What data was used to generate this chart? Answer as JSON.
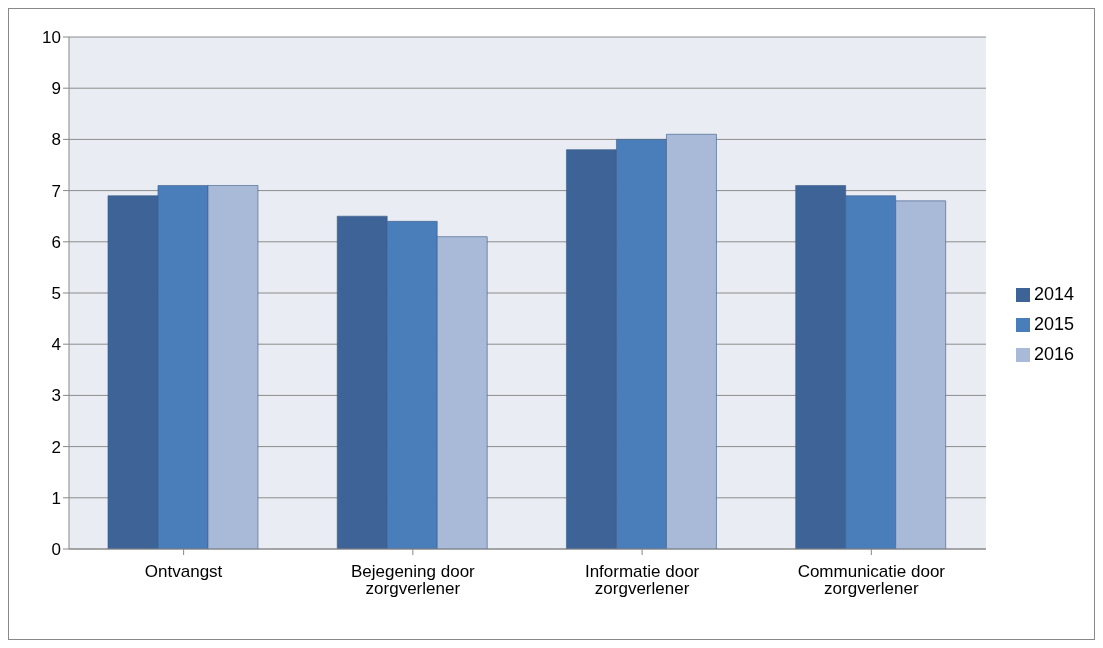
{
  "chart_data": {
    "type": "bar",
    "categories": [
      "Ontvangst",
      "Bejegening door zorgverlener",
      "Informatie door zorgverlener",
      "Communicatie door zorgverlener"
    ],
    "series": [
      {
        "name": "2014",
        "color": "#3e6497",
        "values": [
          6.9,
          6.5,
          7.8,
          7.1
        ]
      },
      {
        "name": "2015",
        "color": "#4a7ebb",
        "values": [
          7.1,
          6.4,
          8.0,
          6.9
        ]
      },
      {
        "name": "2016",
        "color": "#a9b9d8",
        "values": [
          7.1,
          6.1,
          8.1,
          6.8
        ]
      }
    ],
    "ylim": [
      0,
      10
    ],
    "yticks": [
      0,
      1,
      2,
      3,
      4,
      5,
      6,
      7,
      8,
      9,
      10
    ],
    "grid": "y",
    "legend": "right"
  }
}
